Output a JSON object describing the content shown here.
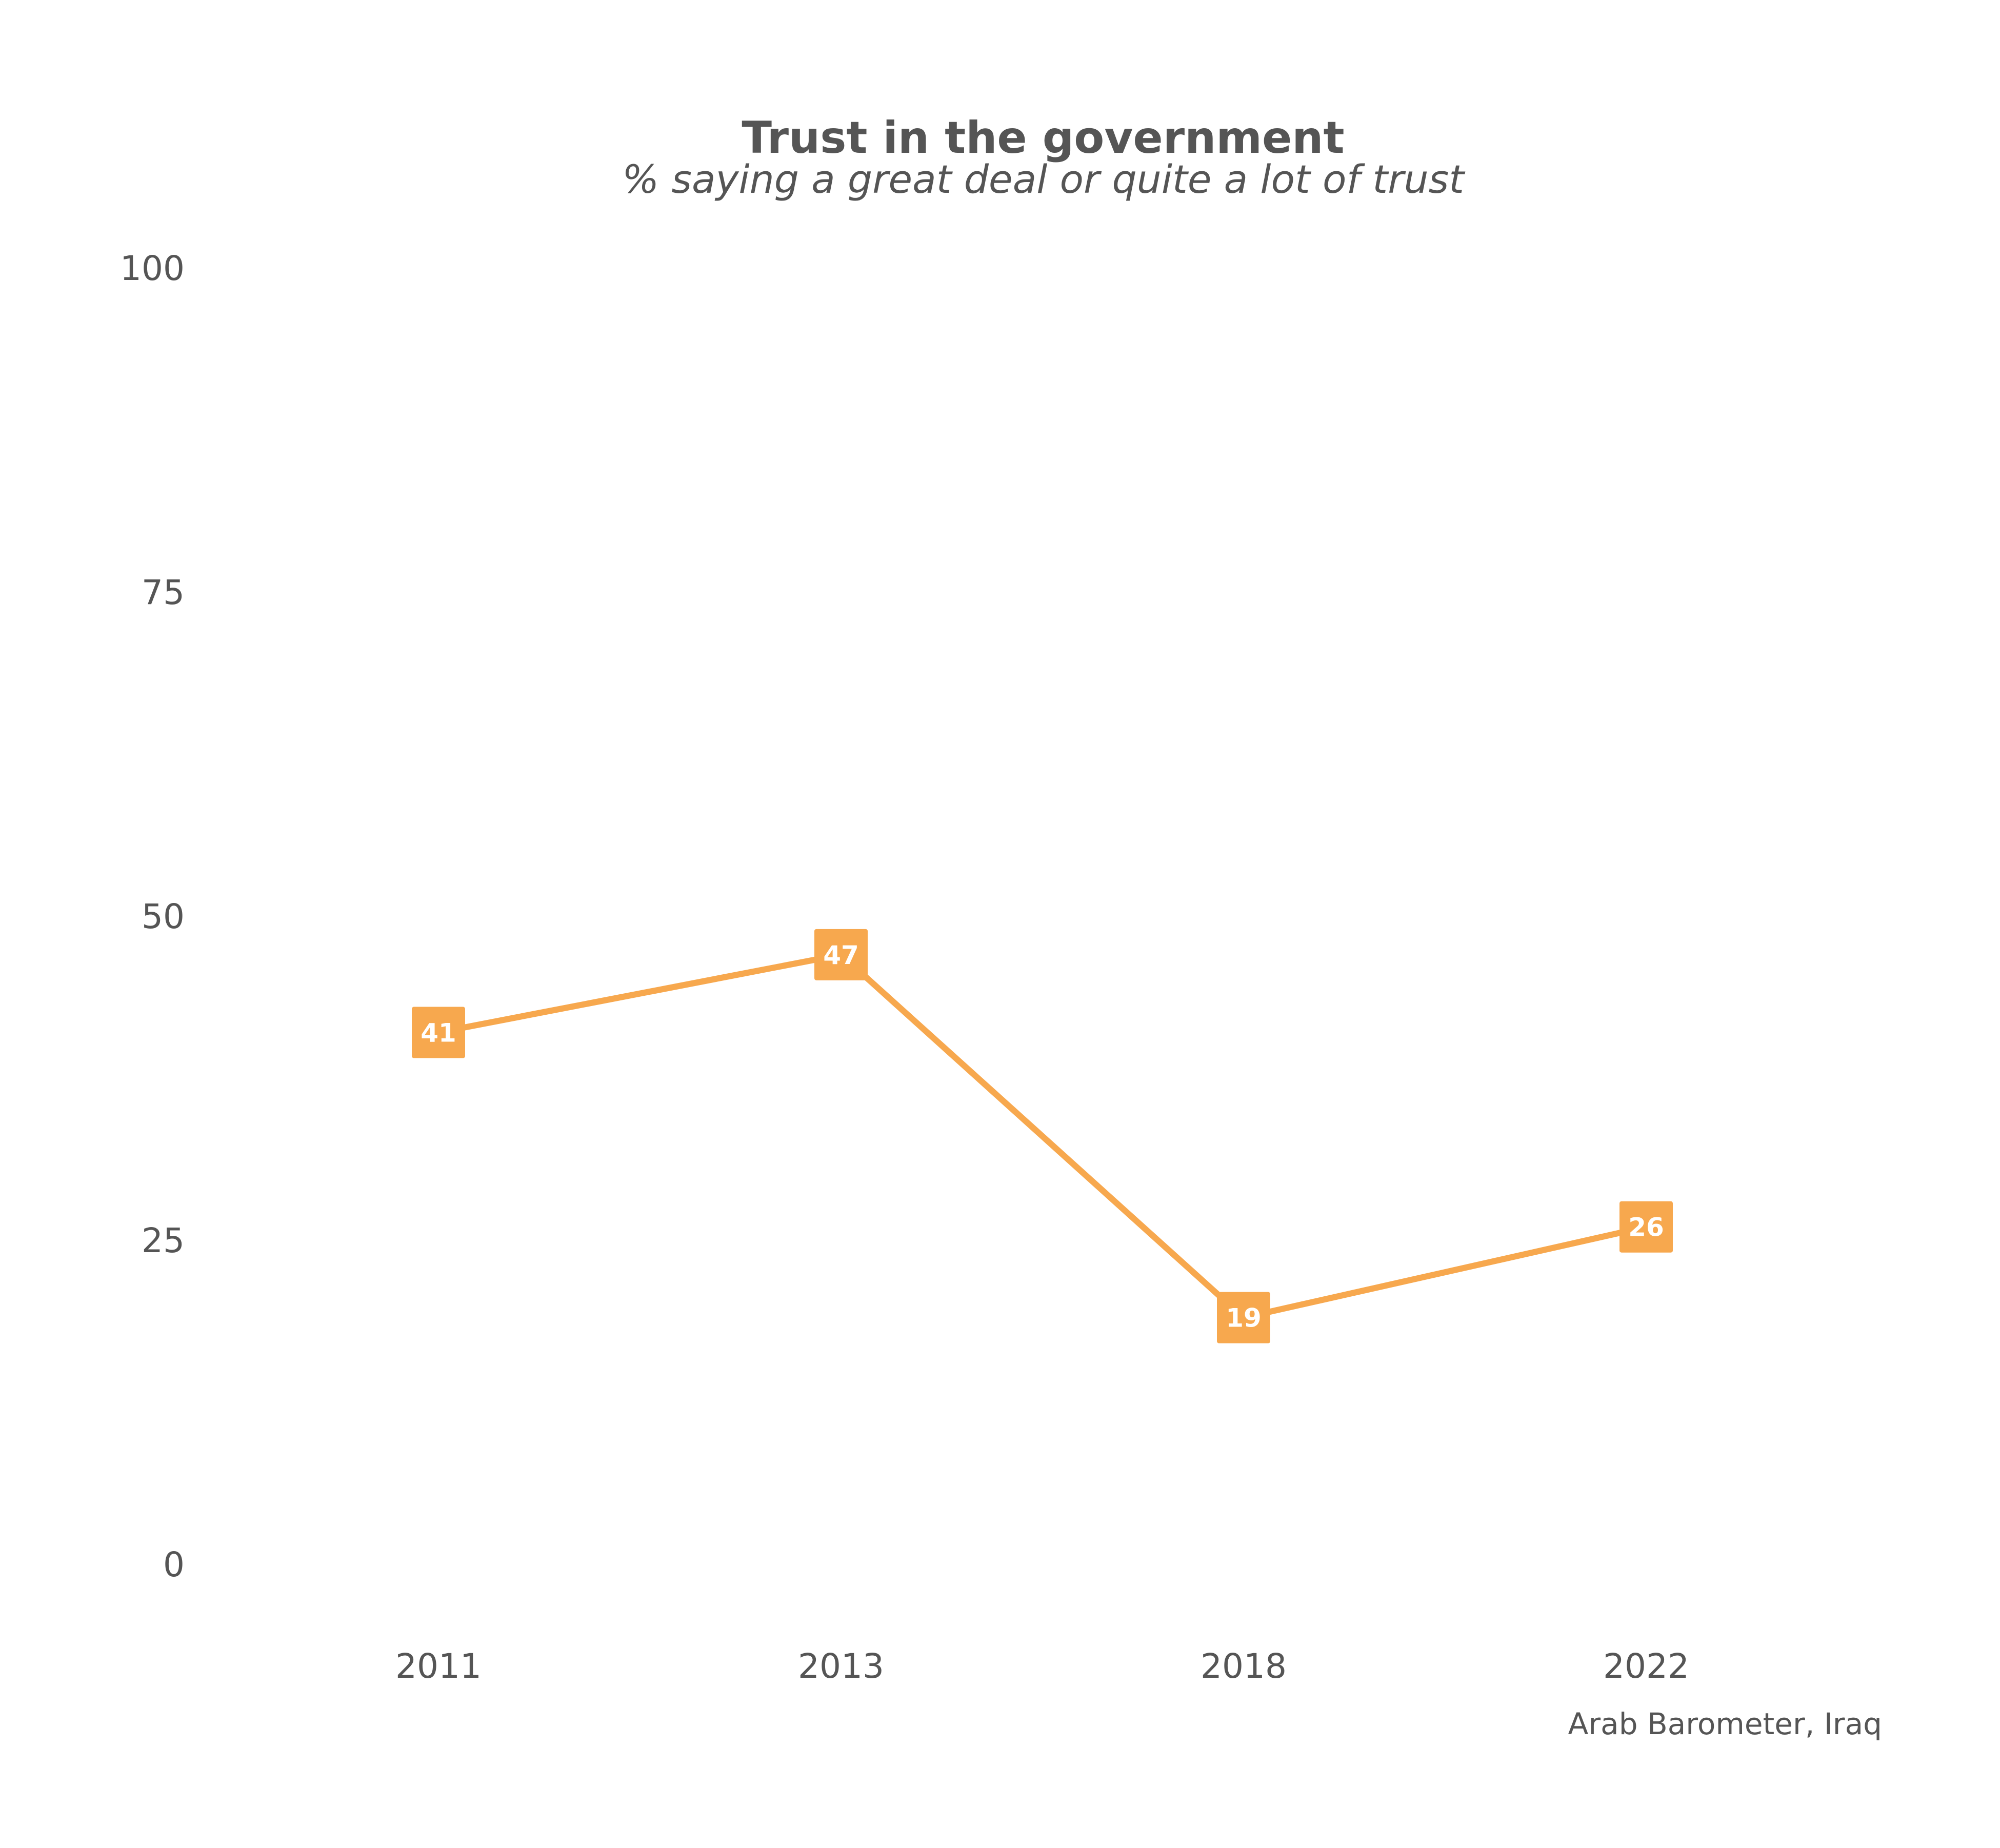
{
  "chart_data": {
    "type": "line",
    "title": "Trust in the government",
    "subtitle": "% saying a great deal or quite a lot of trust",
    "caption": "Arab Barometer, Iraq",
    "categories": [
      "2011",
      "2013",
      "2018",
      "2022"
    ],
    "series": [
      {
        "values": [
          41,
          47,
          19,
          26
        ],
        "color": "#F7A84E"
      }
    ],
    "ylim": [
      0,
      100
    ],
    "yticks": [
      "0",
      "25",
      "50",
      "75",
      "100"
    ],
    "grid": false,
    "legend": "none",
    "data_labels": [
      "41",
      "47",
      "19",
      "26"
    ]
  }
}
